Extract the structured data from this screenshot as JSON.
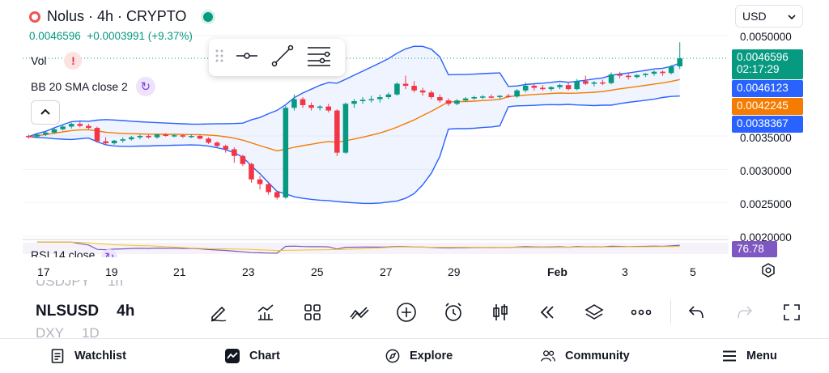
{
  "header": {
    "title": "Nolus · 4h · CRYPTO",
    "price_line": "0.0046596  +0.0003991 (+9.37%)",
    "currency": "USD",
    "colors": {
      "up": "#089981",
      "down": "#f23645",
      "accent": "#2962ff"
    }
  },
  "indicators": {
    "vol_label": "Vol",
    "bb_label": "BB 20 SMA close 2",
    "rsi_label": "RSI 14 close",
    "rsi_value": "76.78"
  },
  "price_axis": {
    "labels": [
      "0.0050000",
      "0.0035000",
      "0.0030000",
      "0.0025000",
      "0.0020000"
    ],
    "tags": {
      "last": "0.0046596",
      "countdown": "02:17:29",
      "bb_upper": "0.0046123",
      "bb_basis": "0.0042245",
      "bb_lower": "0.0038367"
    }
  },
  "time_axis": {
    "labels": [
      "17",
      "19",
      "21",
      "23",
      "25",
      "27",
      "29",
      "Feb",
      "3",
      "5"
    ]
  },
  "symbols": {
    "above": "USDJPY",
    "above_tf": "1h",
    "current": "NLSUSD",
    "current_tf": "4h",
    "below": "DXY",
    "below_tf": "1D"
  },
  "toolbar_icons": [
    "pencil-icon",
    "indicators-icon",
    "layout-icon",
    "drawings-icon",
    "add-icon",
    "alert-icon",
    "candle-type-icon",
    "replay-icon",
    "layers-icon",
    "more-icon",
    "undo-icon",
    "redo-icon",
    "fullscreen-icon"
  ],
  "bottom_nav": {
    "watchlist": "Watchlist",
    "chart": "Chart",
    "explore": "Explore",
    "community": "Community",
    "menu": "Menu"
  },
  "chart_data": {
    "type": "candlestick",
    "price_axis_ticks": [
      0.005,
      0.0035,
      0.003,
      0.0025,
      0.002
    ],
    "y_range": [
      0.0019,
      0.0051
    ],
    "candles": [
      [
        0.0035,
        0.00352,
        0.00346,
        0.00349
      ],
      [
        0.00349,
        0.00354,
        0.00347,
        0.00352
      ],
      [
        0.00352,
        0.00357,
        0.0035,
        0.00355
      ],
      [
        0.00355,
        0.00362,
        0.00353,
        0.0036
      ],
      [
        0.0036,
        0.00366,
        0.00358,
        0.00364
      ],
      [
        0.00364,
        0.0037,
        0.00361,
        0.00368
      ],
      [
        0.00368,
        0.00372,
        0.00363,
        0.00365
      ],
      [
        0.00365,
        0.00368,
        0.0036,
        0.00362
      ],
      [
        0.00362,
        0.00364,
        0.0034,
        0.00342
      ],
      [
        0.00342,
        0.00348,
        0.00337,
        0.00339
      ],
      [
        0.00339,
        0.00344,
        0.00337,
        0.00343
      ],
      [
        0.00343,
        0.00348,
        0.0034,
        0.00345
      ],
      [
        0.00345,
        0.0035,
        0.00343,
        0.00348
      ],
      [
        0.00348,
        0.00352,
        0.00345,
        0.0035
      ],
      [
        0.0035,
        0.00352,
        0.00346,
        0.00348
      ],
      [
        0.00348,
        0.00353,
        0.00346,
        0.00352
      ],
      [
        0.00352,
        0.00354,
        0.00349,
        0.0035
      ],
      [
        0.0035,
        0.00353,
        0.00348,
        0.00351
      ],
      [
        0.00351,
        0.00353,
        0.00347,
        0.00349
      ],
      [
        0.00349,
        0.00352,
        0.00347,
        0.0035
      ],
      [
        0.0035,
        0.00352,
        0.00345,
        0.00346
      ],
      [
        0.00346,
        0.00348,
        0.00338,
        0.0034
      ],
      [
        0.0034,
        0.00342,
        0.00333,
        0.00335
      ],
      [
        0.00335,
        0.00337,
        0.00325,
        0.0033
      ],
      [
        0.0033,
        0.00333,
        0.0031,
        0.0032
      ],
      [
        0.0032,
        0.00322,
        0.00305,
        0.00308
      ],
      [
        0.00308,
        0.0031,
        0.0028,
        0.00285
      ],
      [
        0.00285,
        0.0029,
        0.0027,
        0.00278
      ],
      [
        0.00278,
        0.0028,
        0.00262,
        0.00266
      ],
      [
        0.00266,
        0.00268,
        0.00255,
        0.00258
      ],
      [
        0.00258,
        0.00395,
        0.00256,
        0.00392
      ],
      [
        0.00392,
        0.00412,
        0.00388,
        0.00405
      ],
      [
        0.00405,
        0.00408,
        0.00392,
        0.00396
      ],
      [
        0.00396,
        0.004,
        0.00388,
        0.00392
      ],
      [
        0.00392,
        0.00396,
        0.00388,
        0.00394
      ],
      [
        0.00394,
        0.00398,
        0.00385,
        0.00388
      ],
      [
        0.00388,
        0.0039,
        0.0032,
        0.00325
      ],
      [
        0.00325,
        0.004,
        0.00323,
        0.00398
      ],
      [
        0.00398,
        0.00405,
        0.00392,
        0.00402
      ],
      [
        0.00402,
        0.00408,
        0.00398,
        0.00404
      ],
      [
        0.00404,
        0.0041,
        0.004,
        0.00405
      ],
      [
        0.00405,
        0.00412,
        0.004,
        0.00408
      ],
      [
        0.00408,
        0.00415,
        0.00405,
        0.00412
      ],
      [
        0.00412,
        0.0043,
        0.0041,
        0.00428
      ],
      [
        0.00428,
        0.0044,
        0.0042,
        0.00425
      ],
      [
        0.00425,
        0.00432,
        0.00415,
        0.00418
      ],
      [
        0.00418,
        0.00422,
        0.0041,
        0.00415
      ],
      [
        0.00415,
        0.00418,
        0.00405,
        0.00408
      ],
      [
        0.00408,
        0.00412,
        0.004,
        0.00403
      ],
      [
        0.00403,
        0.00406,
        0.00395,
        0.00398
      ],
      [
        0.00398,
        0.00405,
        0.00396,
        0.00403
      ],
      [
        0.00403,
        0.00408,
        0.00401,
        0.00406
      ],
      [
        0.00406,
        0.0041,
        0.00404,
        0.00408
      ],
      [
        0.00408,
        0.00411,
        0.00405,
        0.00409
      ],
      [
        0.00409,
        0.00412,
        0.00406,
        0.00408
      ],
      [
        0.00408,
        0.00411,
        0.00405,
        0.0041
      ],
      [
        0.0041,
        0.00413,
        0.00407,
        0.00409
      ],
      [
        0.00409,
        0.0042,
        0.00407,
        0.00418
      ],
      [
        0.00418,
        0.0043,
        0.00415,
        0.00425
      ],
      [
        0.00425,
        0.00428,
        0.00418,
        0.00422
      ],
      [
        0.00422,
        0.00426,
        0.00418,
        0.0042
      ],
      [
        0.0042,
        0.00424,
        0.00417,
        0.00423
      ],
      [
        0.00423,
        0.00428,
        0.0042,
        0.00426
      ],
      [
        0.00426,
        0.0043,
        0.00418,
        0.0042
      ],
      [
        0.0042,
        0.00435,
        0.00418,
        0.00432
      ],
      [
        0.00432,
        0.0044,
        0.00426,
        0.00428
      ],
      [
        0.00428,
        0.00432,
        0.00424,
        0.0043
      ],
      [
        0.0043,
        0.00434,
        0.00426,
        0.00429
      ],
      [
        0.00429,
        0.00445,
        0.00427,
        0.00442
      ],
      [
        0.00442,
        0.00446,
        0.00436,
        0.0044
      ],
      [
        0.0044,
        0.00444,
        0.00434,
        0.00438
      ],
      [
        0.00438,
        0.00442,
        0.00436,
        0.00441
      ],
      [
        0.00441,
        0.00444,
        0.00438,
        0.00443
      ],
      [
        0.00443,
        0.00448,
        0.0044,
        0.00446
      ],
      [
        0.00446,
        0.00448,
        0.0044,
        0.00444
      ],
      [
        0.00444,
        0.00456,
        0.00442,
        0.00454
      ],
      [
        0.00454,
        0.0049,
        0.0045,
        0.00466
      ]
    ]
  }
}
